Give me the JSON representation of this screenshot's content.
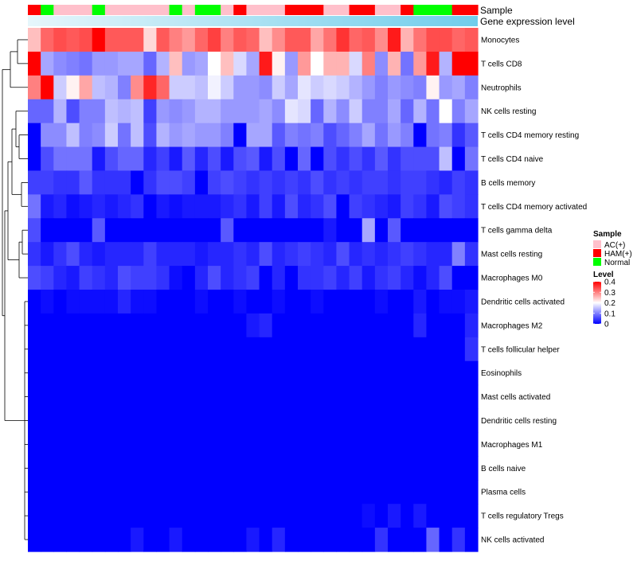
{
  "chart_data": {
    "type": "heatmap",
    "annotation_tracks": [
      {
        "name": "Sample",
        "label": "Sample"
      },
      {
        "name": "Gene expression level",
        "label": "Gene expression level"
      }
    ],
    "sample_groups": [
      "HAM(+)",
      "Normal",
      "AC(+)",
      "AC(+)",
      "AC(+)",
      "Normal",
      "AC(+)",
      "AC(+)",
      "AC(+)",
      "AC(+)",
      "AC(+)",
      "Normal",
      "AC(+)",
      "Normal",
      "Normal",
      "AC(+)",
      "HAM(+)",
      "AC(+)",
      "AC(+)",
      "AC(+)",
      "HAM(+)",
      "HAM(+)",
      "HAM(+)",
      "AC(+)",
      "AC(+)",
      "HAM(+)",
      "HAM(+)",
      "AC(+)",
      "AC(+)",
      "HAM(+)",
      "Normal",
      "Normal",
      "Normal",
      "HAM(+)",
      "HAM(+)"
    ],
    "rows": [
      "Monocytes",
      "T cells CD8",
      "Neutrophils",
      "NK cells resting",
      "T cells CD4 memory resting",
      "T cells CD4 naive",
      "B cells memory",
      "T cells CD4 memory activated",
      "T cells gamma delta",
      "Mast cells resting",
      "Macrophages M0",
      "Dendritic cells activated",
      "Macrophages M2",
      "T cells follicular helper",
      "Eosinophils",
      "Mast cells activated",
      "Dendritic cells resting",
      "Macrophages M1",
      "B cells naive",
      "Plasma cells",
      "T cells regulatory  Tregs",
      "NK cells activated"
    ],
    "values": [
      [
        0.25,
        0.32,
        0.34,
        0.33,
        0.34,
        0.4,
        0.33,
        0.33,
        0.33,
        0.23,
        0.33,
        0.3,
        0.28,
        0.32,
        0.35,
        0.3,
        0.33,
        0.32,
        0.25,
        0.29,
        0.33,
        0.33,
        0.27,
        0.31,
        0.36,
        0.32,
        0.33,
        0.29,
        0.38,
        0.26,
        0.31,
        0.34,
        0.34,
        0.32,
        0.33
      ],
      [
        0.4,
        0.13,
        0.11,
        0.1,
        0.09,
        0.12,
        0.12,
        0.13,
        0.13,
        0.08,
        0.14,
        0.25,
        0.12,
        0.13,
        0.2,
        0.25,
        0.17,
        0.13,
        0.38,
        0.21,
        0.12,
        0.28,
        0.2,
        0.26,
        0.26,
        0.17,
        0.3,
        0.11,
        0.26,
        0.09,
        0.28,
        0.38,
        0.14,
        0.4,
        0.4
      ],
      [
        0.3,
        0.4,
        0.16,
        0.21,
        0.27,
        0.15,
        0.14,
        0.1,
        0.29,
        0.37,
        0.32,
        0.16,
        0.16,
        0.15,
        0.19,
        0.16,
        0.12,
        0.12,
        0.11,
        0.16,
        0.13,
        0.18,
        0.16,
        0.17,
        0.16,
        0.14,
        0.12,
        0.1,
        0.12,
        0.11,
        0.1,
        0.21,
        0.12,
        0.13,
        0.1
      ],
      [
        0.08,
        0.08,
        0.14,
        0.06,
        0.1,
        0.1,
        0.15,
        0.14,
        0.15,
        0.05,
        0.12,
        0.11,
        0.12,
        0.14,
        0.14,
        0.12,
        0.12,
        0.12,
        0.13,
        0.11,
        0.18,
        0.17,
        0.08,
        0.14,
        0.11,
        0.16,
        0.1,
        0.1,
        0.13,
        0.08,
        0.14,
        0.09,
        0.2,
        0.1,
        0.13
      ],
      [
        0.0,
        0.11,
        0.11,
        0.15,
        0.1,
        0.11,
        0.16,
        0.09,
        0.15,
        0.06,
        0.14,
        0.12,
        0.13,
        0.12,
        0.12,
        0.1,
        0.0,
        0.13,
        0.13,
        0.07,
        0.1,
        0.09,
        0.1,
        0.06,
        0.08,
        0.1,
        0.13,
        0.09,
        0.12,
        0.1,
        0.0,
        0.09,
        0.1,
        0.04,
        0.07
      ],
      [
        0.0,
        0.06,
        0.09,
        0.09,
        0.09,
        0.02,
        0.06,
        0.08,
        0.08,
        0.03,
        0.05,
        0.02,
        0.07,
        0.03,
        0.06,
        0.02,
        0.06,
        0.07,
        0.02,
        0.06,
        0.0,
        0.08,
        0.0,
        0.06,
        0.04,
        0.06,
        0.04,
        0.07,
        0.04,
        0.06,
        0.06,
        0.06,
        0.15,
        0.0,
        0.09
      ],
      [
        0.05,
        0.05,
        0.04,
        0.04,
        0.07,
        0.04,
        0.04,
        0.04,
        0.0,
        0.04,
        0.06,
        0.06,
        0.05,
        0.0,
        0.05,
        0.06,
        0.05,
        0.04,
        0.05,
        0.04,
        0.05,
        0.04,
        0.06,
        0.04,
        0.05,
        0.04,
        0.05,
        0.05,
        0.04,
        0.05,
        0.05,
        0.04,
        0.03,
        0.05,
        0.04
      ],
      [
        0.09,
        0.02,
        0.03,
        0.01,
        0.02,
        0.03,
        0.02,
        0.03,
        0.04,
        0.0,
        0.02,
        0.01,
        0.02,
        0.02,
        0.02,
        0.03,
        0.04,
        0.02,
        0.05,
        0.02,
        0.06,
        0.03,
        0.04,
        0.06,
        0.0,
        0.05,
        0.04,
        0.03,
        0.02,
        0.05,
        0.04,
        0.02,
        0.06,
        0.05,
        0.04
      ],
      [
        0.06,
        0.0,
        0.0,
        0.0,
        0.0,
        0.07,
        0.0,
        0.0,
        0.0,
        0.0,
        0.0,
        0.0,
        0.0,
        0.0,
        0.0,
        0.07,
        0.0,
        0.0,
        0.0,
        0.0,
        0.0,
        0.0,
        0.0,
        0.02,
        0.0,
        0.0,
        0.13,
        0.0,
        0.07,
        0.0,
        0.0,
        0.0,
        0.0,
        0.0,
        0.0
      ],
      [
        0.04,
        0.02,
        0.04,
        0.06,
        0.03,
        0.02,
        0.03,
        0.03,
        0.03,
        0.05,
        0.03,
        0.03,
        0.03,
        0.02,
        0.03,
        0.03,
        0.04,
        0.03,
        0.06,
        0.03,
        0.04,
        0.05,
        0.04,
        0.03,
        0.06,
        0.03,
        0.04,
        0.03,
        0.04,
        0.05,
        0.04,
        0.03,
        0.03,
        0.1,
        0.04
      ],
      [
        0.06,
        0.05,
        0.03,
        0.02,
        0.05,
        0.04,
        0.03,
        0.06,
        0.05,
        0.05,
        0.04,
        0.01,
        0.0,
        0.03,
        0.06,
        0.03,
        0.04,
        0.05,
        0.0,
        0.03,
        0.0,
        0.04,
        0.04,
        0.05,
        0.03,
        0.05,
        0.02,
        0.04,
        0.05,
        0.03,
        0.01,
        0.03,
        0.06,
        0.0,
        0.0
      ],
      [
        0.0,
        0.01,
        0.0,
        0.01,
        0.01,
        0.01,
        0.01,
        0.03,
        0.01,
        0.01,
        0.0,
        0.0,
        0.0,
        0.01,
        0.0,
        0.0,
        0.01,
        0.0,
        0.0,
        0.01,
        0.0,
        0.0,
        0.01,
        0.0,
        0.0,
        0.0,
        0.0,
        0.01,
        0.0,
        0.0,
        0.02,
        0.0,
        0.01,
        0.01,
        0.02
      ],
      [
        0.0,
        0.0,
        0.0,
        0.0,
        0.0,
        0.0,
        0.0,
        0.0,
        0.0,
        0.0,
        0.0,
        0.0,
        0.0,
        0.0,
        0.0,
        0.0,
        0.0,
        0.02,
        0.03,
        0.0,
        0.0,
        0.0,
        0.0,
        0.0,
        0.0,
        0.0,
        0.0,
        0.0,
        0.0,
        0.0,
        0.03,
        0.0,
        0.0,
        0.0,
        0.03
      ],
      [
        0.0,
        0.0,
        0.0,
        0.0,
        0.0,
        0.0,
        0.0,
        0.0,
        0.0,
        0.0,
        0.0,
        0.0,
        0.0,
        0.0,
        0.0,
        0.0,
        0.0,
        0.0,
        0.0,
        0.0,
        0.0,
        0.0,
        0.0,
        0.0,
        0.0,
        0.0,
        0.0,
        0.0,
        0.0,
        0.0,
        0.0,
        0.0,
        0.0,
        0.0,
        0.04
      ],
      [
        0.0,
        0.0,
        0.0,
        0.0,
        0.0,
        0.0,
        0.0,
        0.0,
        0.0,
        0.0,
        0.0,
        0.0,
        0.0,
        0.0,
        0.0,
        0.0,
        0.0,
        0.0,
        0.0,
        0.0,
        0.0,
        0.0,
        0.0,
        0.0,
        0.0,
        0.0,
        0.0,
        0.0,
        0.0,
        0.0,
        0.0,
        0.0,
        0.0,
        0.0,
        0.0
      ],
      [
        0.0,
        0.0,
        0.0,
        0.0,
        0.0,
        0.0,
        0.0,
        0.0,
        0.0,
        0.0,
        0.0,
        0.0,
        0.0,
        0.0,
        0.0,
        0.0,
        0.0,
        0.0,
        0.0,
        0.0,
        0.0,
        0.0,
        0.0,
        0.0,
        0.0,
        0.0,
        0.0,
        0.0,
        0.0,
        0.0,
        0.0,
        0.0,
        0.0,
        0.0,
        0.0
      ],
      [
        0.0,
        0.0,
        0.0,
        0.0,
        0.0,
        0.0,
        0.0,
        0.0,
        0.0,
        0.0,
        0.0,
        0.0,
        0.0,
        0.0,
        0.0,
        0.0,
        0.0,
        0.0,
        0.0,
        0.0,
        0.0,
        0.0,
        0.0,
        0.0,
        0.0,
        0.0,
        0.0,
        0.0,
        0.0,
        0.0,
        0.0,
        0.0,
        0.0,
        0.0,
        0.0
      ],
      [
        0.0,
        0.0,
        0.0,
        0.0,
        0.0,
        0.0,
        0.0,
        0.0,
        0.0,
        0.0,
        0.0,
        0.0,
        0.0,
        0.0,
        0.0,
        0.0,
        0.0,
        0.0,
        0.0,
        0.0,
        0.0,
        0.0,
        0.0,
        0.0,
        0.0,
        0.0,
        0.0,
        0.0,
        0.0,
        0.0,
        0.0,
        0.0,
        0.0,
        0.0,
        0.0
      ],
      [
        0.0,
        0.0,
        0.0,
        0.0,
        0.0,
        0.0,
        0.0,
        0.0,
        0.0,
        0.0,
        0.0,
        0.0,
        0.0,
        0.0,
        0.0,
        0.0,
        0.0,
        0.0,
        0.0,
        0.0,
        0.0,
        0.0,
        0.0,
        0.0,
        0.0,
        0.0,
        0.0,
        0.0,
        0.0,
        0.0,
        0.0,
        0.0,
        0.0,
        0.0,
        0.0
      ],
      [
        0.0,
        0.0,
        0.0,
        0.0,
        0.0,
        0.0,
        0.0,
        0.0,
        0.0,
        0.0,
        0.0,
        0.0,
        0.0,
        0.0,
        0.0,
        0.0,
        0.0,
        0.0,
        0.0,
        0.0,
        0.0,
        0.0,
        0.0,
        0.0,
        0.0,
        0.0,
        0.0,
        0.0,
        0.0,
        0.0,
        0.0,
        0.0,
        0.0,
        0.0,
        0.0
      ],
      [
        0.0,
        0.0,
        0.0,
        0.0,
        0.0,
        0.0,
        0.0,
        0.0,
        0.0,
        0.0,
        0.0,
        0.0,
        0.0,
        0.0,
        0.0,
        0.0,
        0.0,
        0.0,
        0.0,
        0.0,
        0.0,
        0.0,
        0.0,
        0.0,
        0.0,
        0.0,
        0.01,
        0.0,
        0.02,
        0.0,
        0.02,
        0.0,
        0.0,
        0.0,
        0.0
      ],
      [
        0.0,
        0.0,
        0.0,
        0.0,
        0.0,
        0.0,
        0.0,
        0.0,
        0.02,
        0.0,
        0.0,
        0.02,
        0.0,
        0.0,
        0.0,
        0.0,
        0.0,
        0.02,
        0.0,
        0.03,
        0.0,
        0.0,
        0.0,
        0.0,
        0.0,
        0.0,
        0.0,
        0.04,
        0.0,
        0.0,
        0.0,
        0.08,
        0.0,
        0.04,
        0.0
      ]
    ],
    "color_scale": {
      "min": 0,
      "max": 0.4,
      "colors": [
        "#0000ff",
        "#ffffff",
        "#ff0000"
      ]
    },
    "legends": {
      "sample": {
        "title": "Sample",
        "entries": [
          {
            "label": "AC(+)",
            "color": "#ffc0cb"
          },
          {
            "label": "HAM(+)",
            "color": "#ff0000"
          },
          {
            "label": "Normal",
            "color": "#00ff00"
          }
        ]
      },
      "level": {
        "title": "Level",
        "ticks": [
          "0.4",
          "0.3",
          "0.2",
          "0.1",
          "0"
        ],
        "tick_values": [
          0.4,
          0.3,
          0.2,
          0.1,
          0
        ]
      }
    },
    "gene_expression_gradient": [
      "#e6f6fb",
      "#70cdeb"
    ]
  }
}
